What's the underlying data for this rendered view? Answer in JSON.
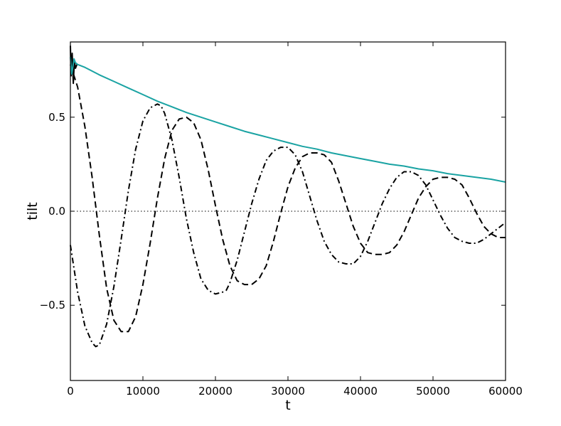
{
  "chart_data": {
    "type": "line",
    "title": "",
    "xlabel": "t",
    "ylabel": "tilt",
    "xlim": [
      0,
      60000
    ],
    "ylim": [
      -0.9,
      0.9
    ],
    "x_ticks": [
      0,
      10000,
      20000,
      30000,
      40000,
      50000,
      60000
    ],
    "x_tick_labels": [
      "0",
      "10000",
      "20000",
      "30000",
      "40000",
      "50000",
      "60000"
    ],
    "y_ticks": [
      -0.5,
      0.0,
      0.5
    ],
    "y_tick_labels": [
      "−0.5",
      "0.0",
      "0.5"
    ],
    "grid": false,
    "legend": "none",
    "series": [
      {
        "style": "solid",
        "color": "#1aa3a3",
        "x": [
          0,
          200,
          500,
          700,
          1000,
          2000,
          4000,
          6000,
          8000,
          10000,
          12000,
          14000,
          16000,
          18000,
          20000,
          22000,
          24000,
          26000,
          28000,
          30000,
          32000,
          34000,
          36000,
          38000,
          40000,
          42000,
          44000,
          46000,
          48000,
          50000,
          52000,
          54000,
          56000,
          58000,
          60000
        ],
        "y": [
          0.82,
          0.73,
          0.81,
          0.79,
          0.78,
          0.765,
          0.725,
          0.69,
          0.655,
          0.62,
          0.585,
          0.555,
          0.525,
          0.5,
          0.475,
          0.45,
          0.425,
          0.405,
          0.385,
          0.365,
          0.345,
          0.33,
          0.31,
          0.295,
          0.28,
          0.265,
          0.25,
          0.24,
          0.225,
          0.215,
          0.2,
          0.19,
          0.18,
          0.17,
          0.155
        ]
      },
      {
        "style": "solid",
        "color": "#000000",
        "x": [
          0,
          100,
          250,
          400,
          550,
          700,
          900
        ],
        "y": [
          0.88,
          0.72,
          0.84,
          0.68,
          0.8,
          0.76,
          0.78
        ]
      },
      {
        "style": "dashed",
        "color": "#000000",
        "x": [
          0,
          500,
          1000,
          2000,
          3000,
          4000,
          5000,
          6000,
          7000,
          8000,
          9000,
          10000,
          11000,
          12000,
          13000,
          14000,
          15000,
          16000,
          17000,
          18000,
          19000,
          20000,
          21000,
          22000,
          23000,
          24000,
          25000,
          26000,
          27000,
          28000,
          29000,
          30000,
          31000,
          32000,
          33000,
          34000,
          35000,
          36000,
          37000,
          38000,
          39000,
          40000,
          41000,
          42000,
          43000,
          44000,
          45000,
          46000,
          47000,
          48000,
          49000,
          50000,
          51000,
          52000,
          53000,
          54000,
          55000,
          56000,
          57000,
          58000,
          59000,
          60000
        ],
        "y": [
          0.78,
          0.72,
          0.66,
          0.45,
          0.18,
          -0.13,
          -0.41,
          -0.58,
          -0.64,
          -0.64,
          -0.56,
          -0.39,
          -0.17,
          0.07,
          0.28,
          0.43,
          0.49,
          0.5,
          0.47,
          0.38,
          0.22,
          0.03,
          -0.15,
          -0.29,
          -0.37,
          -0.39,
          -0.39,
          -0.36,
          -0.29,
          -0.16,
          -0.01,
          0.13,
          0.23,
          0.29,
          0.31,
          0.31,
          0.3,
          0.26,
          0.16,
          0.04,
          -0.08,
          -0.17,
          -0.22,
          -0.23,
          -0.23,
          -0.22,
          -0.18,
          -0.11,
          -0.02,
          0.07,
          0.13,
          0.17,
          0.18,
          0.18,
          0.17,
          0.14,
          0.07,
          -0.01,
          -0.08,
          -0.12,
          -0.14,
          -0.14
        ]
      },
      {
        "style": "dashdot",
        "color": "#000000",
        "x": [
          0,
          1000,
          2000,
          3000,
          3500,
          4000,
          5000,
          6000,
          7000,
          8000,
          9000,
          10000,
          11000,
          12000,
          12500,
          13000,
          14000,
          15000,
          16000,
          17000,
          18000,
          19000,
          20000,
          21000,
          21500,
          22000,
          23000,
          24000,
          25000,
          26000,
          27000,
          28000,
          29000,
          30000,
          31000,
          32000,
          33000,
          34000,
          35000,
          36000,
          37000,
          38000,
          39000,
          40000,
          41000,
          42000,
          43000,
          44000,
          45000,
          46000,
          47000,
          48000,
          49000,
          50000,
          51000,
          52000,
          53000,
          54000,
          55000,
          56000,
          57000,
          58000,
          59000,
          60000
        ],
        "y": [
          -0.18,
          -0.43,
          -0.61,
          -0.7,
          -0.72,
          -0.71,
          -0.6,
          -0.4,
          -0.15,
          0.11,
          0.33,
          0.48,
          0.55,
          0.57,
          0.56,
          0.52,
          0.38,
          0.18,
          -0.04,
          -0.22,
          -0.36,
          -0.42,
          -0.44,
          -0.43,
          -0.42,
          -0.38,
          -0.26,
          -0.11,
          0.04,
          0.17,
          0.27,
          0.32,
          0.34,
          0.34,
          0.3,
          0.21,
          0.08,
          -0.05,
          -0.16,
          -0.23,
          -0.27,
          -0.28,
          -0.28,
          -0.24,
          -0.16,
          -0.06,
          0.04,
          0.12,
          0.18,
          0.21,
          0.21,
          0.19,
          0.14,
          0.06,
          -0.02,
          -0.09,
          -0.14,
          -0.16,
          -0.17,
          -0.17,
          -0.15,
          -0.12,
          -0.09,
          -0.06
        ]
      },
      {
        "style": "dotted",
        "color": "#000000",
        "x": [
          0,
          60000
        ],
        "y": [
          0,
          0
        ]
      }
    ]
  }
}
